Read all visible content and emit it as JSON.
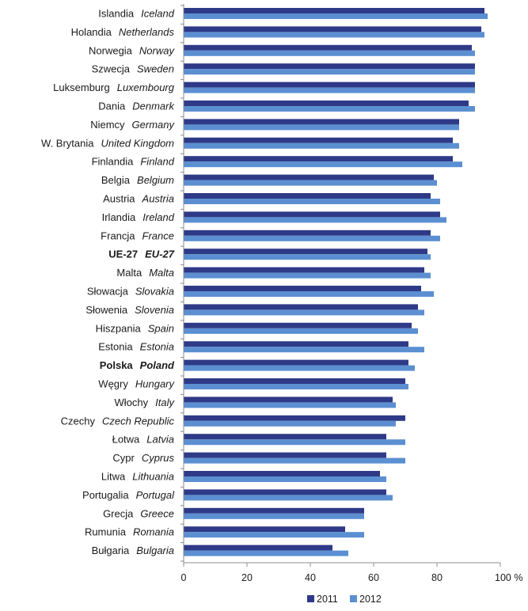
{
  "chart_data": {
    "type": "bar",
    "orientation": "horizontal",
    "categories": [
      {
        "pl": "Islandia",
        "en": "Iceland",
        "bold": false
      },
      {
        "pl": "Holandia",
        "en": "Netherlands",
        "bold": false
      },
      {
        "pl": "Norwegia",
        "en": "Norway",
        "bold": false
      },
      {
        "pl": "Szwecja",
        "en": "Sweden",
        "bold": false
      },
      {
        "pl": "Luksemburg",
        "en": "Luxembourg",
        "bold": false
      },
      {
        "pl": "Dania",
        "en": "Denmark",
        "bold": false
      },
      {
        "pl": "Niemcy",
        "en": "Germany",
        "bold": false
      },
      {
        "pl": "W. Brytania",
        "en": "United Kingdom",
        "bold": false
      },
      {
        "pl": "Finlandia",
        "en": "Finland",
        "bold": false
      },
      {
        "pl": "Belgia",
        "en": "Belgium",
        "bold": false
      },
      {
        "pl": "Austria",
        "en": "Austria",
        "bold": false
      },
      {
        "pl": "Irlandia",
        "en": "Ireland",
        "bold": false
      },
      {
        "pl": "Francja",
        "en": "France",
        "bold": false
      },
      {
        "pl": "UE-27",
        "en": "EU-27",
        "bold": true
      },
      {
        "pl": "Malta",
        "en": "Malta",
        "bold": false
      },
      {
        "pl": "Słowacja",
        "en": "Slovakia",
        "bold": false
      },
      {
        "pl": "Słowenia",
        "en": "Slovenia",
        "bold": false
      },
      {
        "pl": "Hiszpania",
        "en": "Spain",
        "bold": false
      },
      {
        "pl": "Estonia",
        "en": "Estonia",
        "bold": false
      },
      {
        "pl": "Polska",
        "en": "Poland",
        "bold": true
      },
      {
        "pl": "Węgry",
        "en": "Hungary",
        "bold": false
      },
      {
        "pl": "Włochy",
        "en": "Italy",
        "bold": false
      },
      {
        "pl": "Czechy",
        "en": "Czech Republic",
        "bold": false
      },
      {
        "pl": "Łotwa",
        "en": "Latvia",
        "bold": false
      },
      {
        "pl": "Cypr",
        "en": "Cyprus",
        "bold": false
      },
      {
        "pl": "Litwa",
        "en": "Lithuania",
        "bold": false
      },
      {
        "pl": "Portugalia",
        "en": "Portugal",
        "bold": false
      },
      {
        "pl": "Grecja",
        "en": "Greece",
        "bold": false
      },
      {
        "pl": "Rumunia",
        "en": "Romania",
        "bold": false
      },
      {
        "pl": "Bułgaria",
        "en": "Bulgaria",
        "bold": false
      }
    ],
    "series": [
      {
        "name": "2011",
        "color": "#2e3a87",
        "values": [
          95,
          94,
          91,
          92,
          92,
          90,
          87,
          85,
          85,
          79,
          78,
          81,
          78,
          77,
          76,
          75,
          74,
          72,
          71,
          71,
          70,
          66,
          70,
          64,
          64,
          62,
          64,
          57,
          51,
          47
        ]
      },
      {
        "name": "2012",
        "color": "#5b8fd1",
        "values": [
          96,
          95,
          92,
          92,
          92,
          92,
          87,
          87,
          88,
          80,
          81,
          83,
          81,
          78,
          78,
          79,
          76,
          74,
          76,
          73,
          71,
          67,
          67,
          70,
          70,
          64,
          66,
          57,
          57,
          52
        ]
      }
    ],
    "xlim": [
      0,
      100
    ],
    "xticks": [
      "0",
      "20",
      "40",
      "60",
      "80",
      "100 %"
    ],
    "xtick_values": [
      0,
      20,
      40,
      60,
      80,
      100
    ],
    "grid": false,
    "legend_position": "bottom-center"
  }
}
